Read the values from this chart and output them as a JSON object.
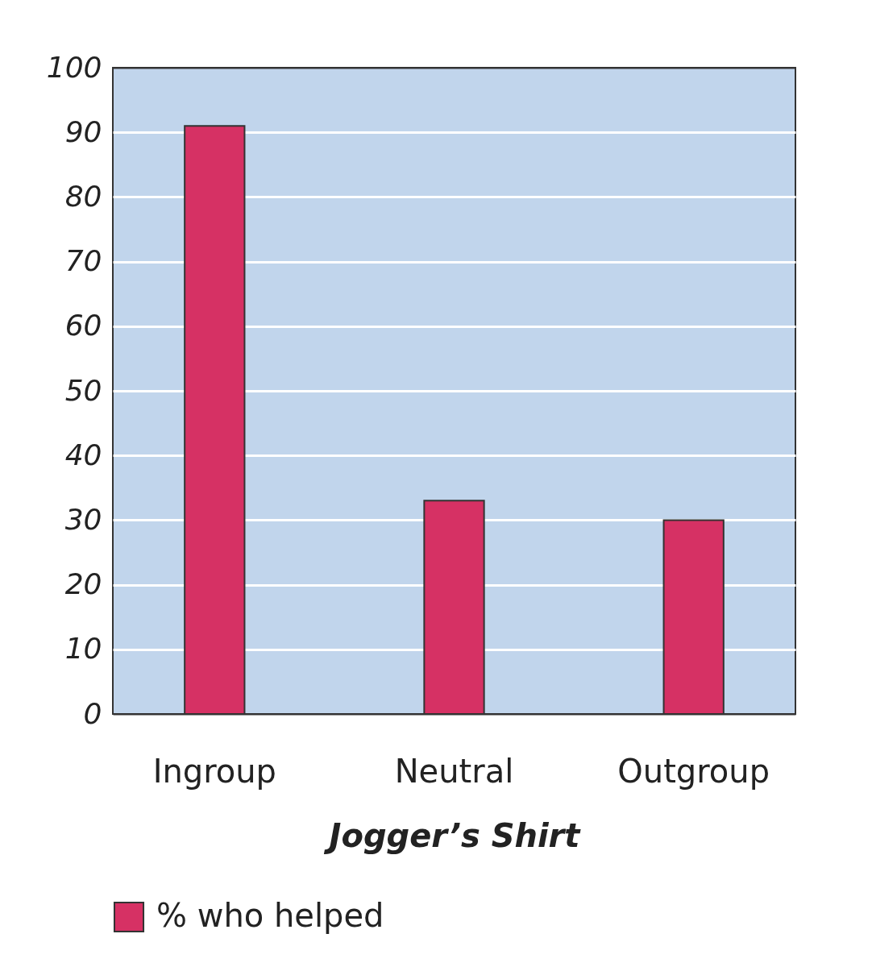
{
  "chart_data": {
    "type": "bar",
    "xlabel": "Jogger’s Shirt",
    "categories": [
      "Ingroup",
      "Neutral",
      "Outgroup"
    ],
    "series": [
      {
        "name": "% who helped",
        "color": "#d63164",
        "values": [
          91,
          33,
          30
        ]
      }
    ],
    "ylim": [
      0,
      100
    ],
    "yticks": [
      0,
      10,
      20,
      30,
      40,
      50,
      60,
      70,
      80,
      90,
      100
    ],
    "grid": "y",
    "legend": "bottom left"
  }
}
